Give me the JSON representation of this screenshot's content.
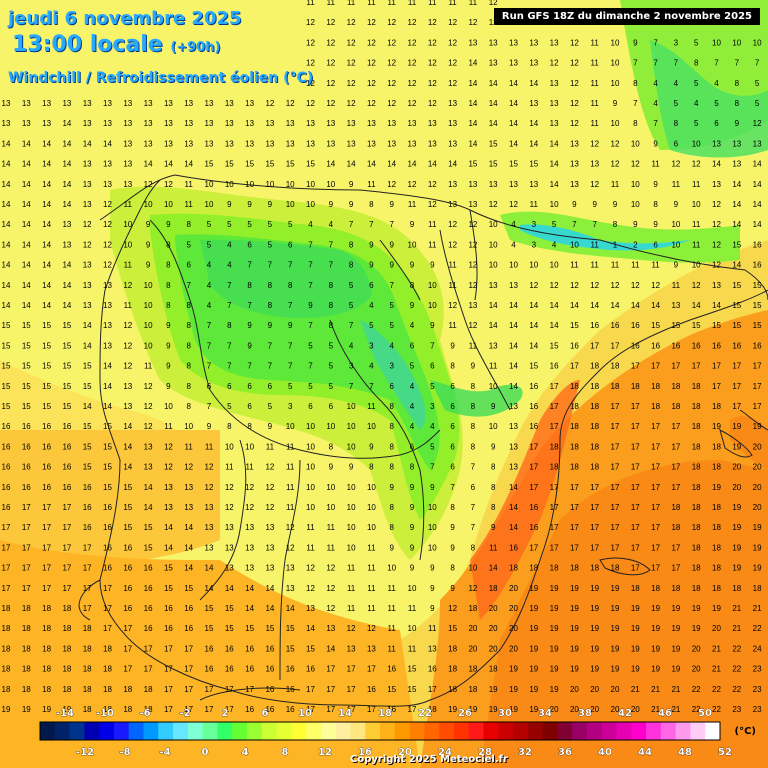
{
  "title": {
    "date": "jeudi 6 novembre 2025",
    "time": "13:00 locale",
    "lead": "(+90h)",
    "variable": "Windchill / Refroidissement éolien (°C)"
  },
  "run_info": "Run GFS 18Z du dimanche 2 novembre 2025",
  "copyright": "Copyright 2025 Meteociel.fr",
  "legend": {
    "unit": "(°C)",
    "labels_top": [
      "-14",
      "-10",
      "-6",
      "-2",
      "2",
      "6",
      "10",
      "14",
      "18",
      "22",
      "26",
      "30",
      "34",
      "38",
      "42",
      "46",
      "50"
    ],
    "labels_bottom": [
      "-12",
      "-8",
      "-4",
      "0",
      "4",
      "8",
      "12",
      "16",
      "20",
      "24",
      "28",
      "32",
      "36",
      "40",
      "44",
      "48",
      "52"
    ],
    "colors": [
      "#001a4d",
      "#002266",
      "#00338c",
      "#0000b3",
      "#0000e6",
      "#1a1aff",
      "#0066ff",
      "#0099ff",
      "#33ccff",
      "#66e6ff",
      "#7fffd4",
      "#66ff99",
      "#33ff66",
      "#66ff33",
      "#99ff33",
      "#ccff33",
      "#e6ff33",
      "#ffff33",
      "#ffff66",
      "#ffff99",
      "#fff0a0",
      "#ffe680",
      "#ffcc33",
      "#ffb319",
      "#ff9900",
      "#ff7f00",
      "#ff6600",
      "#ff4c00",
      "#ff3300",
      "#ff1a1a",
      "#e60000",
      "#cc0000",
      "#b30000",
      "#990000",
      "#800000",
      "#800033",
      "#990066",
      "#b30080",
      "#cc0099",
      "#e600b3",
      "#ff00cc",
      "#ff33dd",
      "#ff66e6",
      "#ff99ee",
      "#ffccf5",
      "#ffffff"
    ]
  },
  "labels": {
    "rows": [
      "12 12 12 12 12 12 12 12 12 11 11 11 11 11 11 11 11 11 11 11 11 11 11 11 12 12 12 12 12 12 12 12 12 12 12 12 12 12",
      "12 12 12 12 12 12 12 12 12 12 12 12 12 12 12 12 12 12 12 12 12 12 12 12 12 13 13 13 12 11 10 9 7 4 8 6 9 12",
      "12 12 12 12 12 12 12 12 12 12 12 12 12 12 12 12 12 12 12 12 12 12 12 13 13 13 13 13 12 11 10 9 7 3 5 10 10 10",
      "12 12 12 12 12 12 12 12 12 12 12 12 12 12 12 12 12 12 12 12 12 12 12 14 13 13 13 12 12 11 10 7 7 7 8 7 7 7",
      "13 13 13 13 12 12 12 12 12 12 12 12 12 12 12 12 12 12 12 12 12 12 12 14 14 14 14 13 12 11 10 8 4 4 5 4 8 5",
      "13 13 13 13 13 13 13 13 13 13 13 13 13 12 12 12 12 12 12 12 12 12 13 14 14 14 13 13 12 11 9 7 4 5 4 5 8 5",
      "13 13 13 14 13 13 13 13 13 13 13 13 13 13 13 13 13 13 13 13 13 13 13 14 14 14 14 13 12 11 10 8 7 8 5 6 9 12",
      "14 14 14 14 14 14 13 13 13 13 13 13 13 13 13 13 13 13 13 13 13 13 13 14 15 14 14 14 13 12 12 10 9 6 10 13 13 13",
      "14 14 14 14 13 13 13 14 14 14 15 15 15 15 15 15 14 14 14 14 14 14 14 15 15 15 15 14 13 13 12 12 11 12 12 14 13 14",
      "14 14 14 14 13 13 13 12 12 11 10 10 10 10 10 10 10 9 11 12 12 12 13 13 13 13 13 14 13 12 11 10 9 11 11 13 14 14",
      "14 14 14 14 13 12 11 10 10 11 10 9 9 9 10 10 9 9 8 9 11 12 13 13 12 12 11 10 9 9 9 10 8 9 10 12 14 14",
      "14 14 14 13 12 12 10 9 9 8 5 5 5 5 5 4 4 7 7 7 9 11 12 12 10 4 3 5 7 7 8 9 9 10 11 12 14 14",
      "14 14 14 13 12 12 10 9 8 5 5 4 6 5 6 7 7 8 9 9 10 11 12 12 10 4 3 4 10 11 1 2 6 10 11 12 15 16",
      "14 14 14 14 13 12 11 9 8 6 4 4 7 7 7 7 7 8 9 9 9 9 11 12 10 10 10 10 11 11 11 11 11 9 10 12 14 16",
      "14 14 14 14 13 13 12 10 8 7 4 7 8 8 8 7 8 5 6 7 8 10 11 12 13 13 12 12 12 12 12 12 12 11 12 13 15 15",
      "14 14 14 14 13 13 11 10 8 8 4 7 7 8 7 9 8 5 4 5 9 10 12 13 14 14 14 14 14 14 14 14 14 13 14 14 15 15",
      "15 15 15 15 14 13 12 10 9 8 7 8 9 9 9 7 8 7 5 5 4 9 11 12 14 14 14 14 15 16 16 16 15 15 15 15 15 15",
      "15 15 15 15 14 13 12 10 9 8 7 7 9 7 7 5 5 4 3 4 6 7 9 11 13 14 14 15 16 17 17 16 16 16 16 16 16 16",
      "15 15 15 15 15 14 12 11 9 8 7 7 7 7 7 7 5 3 4 3 5 6 8 9 11 14 15 16 17 18 18 17 17 17 17 17 17 17",
      "15 15 15 15 15 14 13 12 9 8 6 6 6 6 5 5 5 7 7 6 4 5 6 8 10 14 16 17 18 18 18 18 18 18 18 17 17 17",
      "15 15 15 15 14 14 13 12 10 8 7 5 6 5 3 6 6 10 11 8 4 3 6 8 9 13 16 17 18 18 17 17 18 18 18 18 17 17",
      "16 16 16 16 15 15 14 12 11 10 9 8 8 9 10 10 10 10 10 8 4 4 6 8 10 13 16 17 18 18 17 17 17 17 18 19 19 19",
      "16 16 16 16 15 15 14 13 12 11 11 10 10 11 11 10 8 10 9 8 6 5 6 8 9 13 17 18 18 18 17 17 17 17 18 18 19 20",
      "16 16 16 16 15 15 14 13 12 12 12 11 11 12 11 10 9 9 8 8 8 7 6 7 8 13 17 18 18 18 17 17 17 17 18 18 20 20",
      "16 16 16 16 16 15 15 14 13 13 12 12 12 12 11 10 10 10 10 9 9 9 7 6 8 14 17 17 17 17 17 17 17 17 18 19 20 20",
      "16 17 17 17 16 16 15 14 13 13 13 12 12 12 11 10 10 10 10 8 9 10 8 7 8 14 16 17 17 17 17 17 17 18 18 18 19 20",
      "17 17 17 17 16 16 15 15 14 14 13 13 13 13 12 11 11 10 10 8 9 10 9 7 9 14 16 17 17 17 17 17 17 18 18 18 19 19",
      "17 17 17 17 17 16 16 15 14 14 13 13 13 13 12 11 11 10 11 9 9 10 9 8 11 16 17 17 17 17 17 17 17 17 18 18 19 19",
      "17 17 17 17 17 16 16 16 15 14 14 13 13 13 13 12 12 11 11 10 9 9 8 10 14 18 18 18 18 18 18 17 17 17 18 18 19 19",
      "17 17 17 17 17 17 16 16 15 15 14 14 14 14 13 12 12 11 11 11 10 9 9 12 18 20 19 19 19 19 19 18 18 18 18 18 18 18",
      "18 18 18 18 17 17 16 16 16 16 15 15 14 14 14 13 12 11 11 11 11 9 12 18 20 20 19 19 19 19 19 19 19 19 19 19 21 21",
      "18 18 18 18 18 17 17 16 16 16 15 15 15 15 15 14 13 12 12 11 10 11 15 20 20 20 19 19 19 19 19 19 19 19 19 20 21 22",
      "18 18 18 18 18 18 17 17 17 17 16 16 16 16 15 15 14 13 13 11 11 13 18 20 20 20 19 19 19 19 19 19 19 19 20 21 22 24",
      "18 18 18 18 18 18 17 17 17 17 16 16 16 16 16 16 17 17 17 16 15 16 18 18 18 19 19 19 19 19 19 19 19 19 20 21 22 23",
      "18 18 18 18 18 18 18 18 17 17 17 17 17 16 16 17 17 17 16 15 15 17 18 18 19 19 19 19 20 20 20 21 21 21 22 22 22 23",
      "19 19 19 19 18 18 18 18 17 17 17 17 16 16 16 17 17 17 17 16 17 18 19 19 19 19 19 20 20 20 20 20 21 21 22 22 23 23",
      "19 19 19 19 19 19 18 18 18 18 18 18 18 17 17 17 17 17 18 18 18 19 19 19 19 19 20 20 20 20 20 20 21 21 21 22 22 22"
    ]
  }
}
